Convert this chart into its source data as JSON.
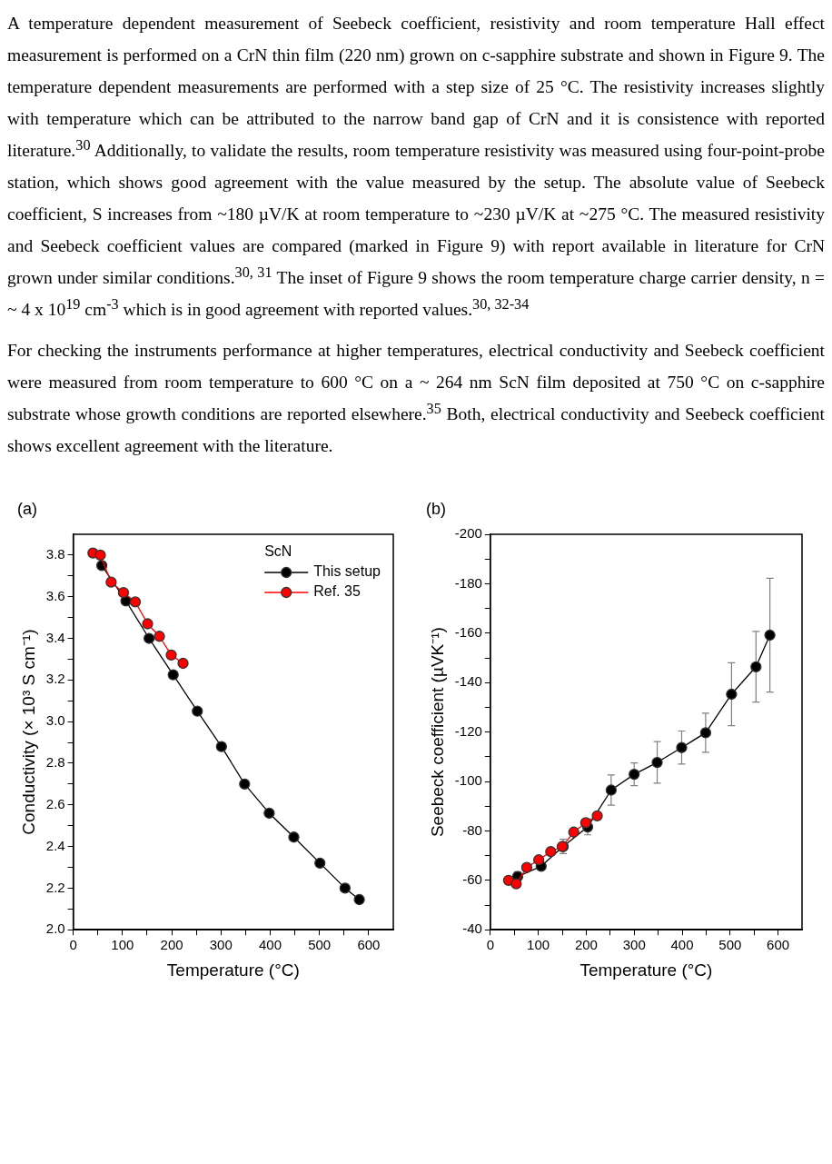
{
  "chart_data": [
    {
      "type": "other",
      "annotations": [
        "A temperature dependent measurement of Seebeck coefficient, resistivity and room temperature Hall effect measurement is performed on a CrN thin film (220 nm) grown on c-sapphire substrate and shown in Figure 9. The temperature dependent measurements are performed with a step size of 25 °C. The resistivity increases slightly with temperature which can be attributed to the narrow band gap of CrN and it is consistence with reported literature.$^{30}$ Additionally, to validate the results, room temperature resistivity was measured using four-point-probe station, which shows good agreement with the value measured by the setup. The absolute value of Seebeck coefficient, S increases from ~180 µV/K at room temperature to ~230 µV/K at ~275 °C. The measured resistivity and Seebeck coefficient values are compared (marked in Figure 9) with report available in literature for CrN grown under similar conditions.$^{30, 31}$ The inset of Figure 9 shows the room temperature charge carrier density, n = ~ 4 x 10$^{19}$ cm$^{-3}$ which is in good agreement with reported values.$^{30, 32-34}$",
        "For checking the instruments performance at higher temperatures, electrical conductivity and Seebeck coefficient were measured from room temperature to 600 °C on a ~ 264 nm ScN film deposited at 750 °C on c-sapphire substrate whose growth conditions are reported elsewhere.$^{35}$ Both, electrical conductivity and Seebeck coefficient shows excellent agreement with the literature."
      ]
    },
    {
      "type": "line",
      "annotations": [
        "(a)"
      ],
      "xlabel": "Temperature (°C)",
      "ylabel": "Conductivity (× 10³ S cm⁻¹)",
      "xlim": [
        0,
        650
      ],
      "xticks": [
        0,
        {
          "value": 50,
          "label": null
        },
        100,
        {
          "value": 150,
          "label": null
        },
        200,
        {
          "value": 250,
          "label": null
        },
        300,
        {
          "value": 350,
          "label": null
        },
        400,
        {
          "value": 450,
          "label": null
        },
        500,
        {
          "value": 550,
          "label": null
        },
        600
      ],
      "ylim": [
        2.0,
        3.9
      ],
      "yticks": [
        {
          "value": 2,
          "label": "2.0"
        },
        {
          "value": 2.1,
          "label": null
        },
        2.2,
        {
          "value": 2.3,
          "label": null
        },
        2.4,
        {
          "value": 2.5,
          "label": null
        },
        2.6,
        {
          "value": 2.7,
          "label": null
        },
        2.8,
        {
          "value": 2.9,
          "label": null
        },
        {
          "value": 3,
          "label": "3.0"
        },
        {
          "value": 3.1,
          "label": null
        },
        3.2,
        {
          "value": 3.3,
          "label": null
        },
        3.4,
        {
          "value": 3.5,
          "label": null
        },
        3.6,
        {
          "value": 3.7,
          "label": null
        },
        3.8
      ],
      "grid": false,
      "legend": "top right",
      "legend_title": "ScN",
      "marker": "circle",
      "line_style": "solid",
      "series": [
        {
          "name": "This setup",
          "color": "#000000",
          "x": [
            58,
            107,
            154,
            203,
            252,
            301,
            348,
            398,
            448,
            501,
            552,
            581
          ],
          "values": [
            3.75,
            3.58,
            3.4,
            3.225,
            3.05,
            2.88,
            2.7,
            2.56,
            2.445,
            2.32,
            2.2,
            2.145
          ]
        },
        {
          "name": "Ref. 35",
          "color": "#ff0000",
          "x": [
            40,
            55,
            77,
            102,
            126,
            151,
            175,
            199,
            223
          ],
          "values": [
            3.81,
            3.8,
            3.67,
            3.62,
            3.575,
            3.47,
            3.41,
            3.32,
            3.28
          ]
        }
      ]
    },
    {
      "type": "line",
      "annotations": [
        "(b)"
      ],
      "xlabel": "Temperature (°C)",
      "ylabel": "Seebeck coefficient (µVK⁻¹)",
      "xlim": [
        0,
        650
      ],
      "xticks": [
        0,
        {
          "value": 50,
          "label": null
        },
        100,
        {
          "value": 150,
          "label": null
        },
        200,
        {
          "value": 250,
          "label": null
        },
        300,
        {
          "value": 350,
          "label": null
        },
        400,
        {
          "value": 450,
          "label": null
        },
        500,
        {
          "value": 550,
          "label": null
        },
        600
      ],
      "ylim": [
        -40,
        -200
      ],
      "yticks": [
        -40,
        {
          "value": -50,
          "label": null
        },
        -60,
        {
          "value": -70,
          "label": null
        },
        -80,
        {
          "value": -90,
          "label": null
        },
        -100,
        {
          "value": -110,
          "label": null
        },
        -120,
        {
          "value": -130,
          "label": null
        },
        -140,
        {
          "value": -150,
          "label": null
        },
        -160,
        {
          "value": -170,
          "label": null
        },
        -180,
        {
          "value": -190,
          "label": null
        },
        -200
      ],
      "grid": false,
      "legend": false,
      "marker": "circle",
      "line_style": "solid",
      "series": [
        {
          "color": "#000000",
          "x": [
            57,
            106,
            152,
            203,
            252,
            300,
            348,
            399,
            449,
            503,
            554,
            583
          ],
          "values": [
            -61.5,
            -65.7,
            -73.7,
            -81.6,
            -96.5,
            -102.9,
            -107.7,
            -113.7,
            -119.7,
            -135.3,
            -146.4,
            -159.2
          ],
          "errors": [
            2,
            null,
            2.9,
            3.2,
            6.1,
            4.6,
            8.4,
            6.7,
            7.9,
            12.7,
            14.3,
            23
          ]
        },
        {
          "color": "#ff0000",
          "x": [
            38,
            54,
            76,
            101,
            126,
            150,
            174,
            199,
            223
          ],
          "values": [
            -60,
            -58.6,
            -65.2,
            -68.3,
            -71.6,
            -73.7,
            -79.5,
            -83.3,
            -86.1
          ]
        }
      ]
    }
  ]
}
